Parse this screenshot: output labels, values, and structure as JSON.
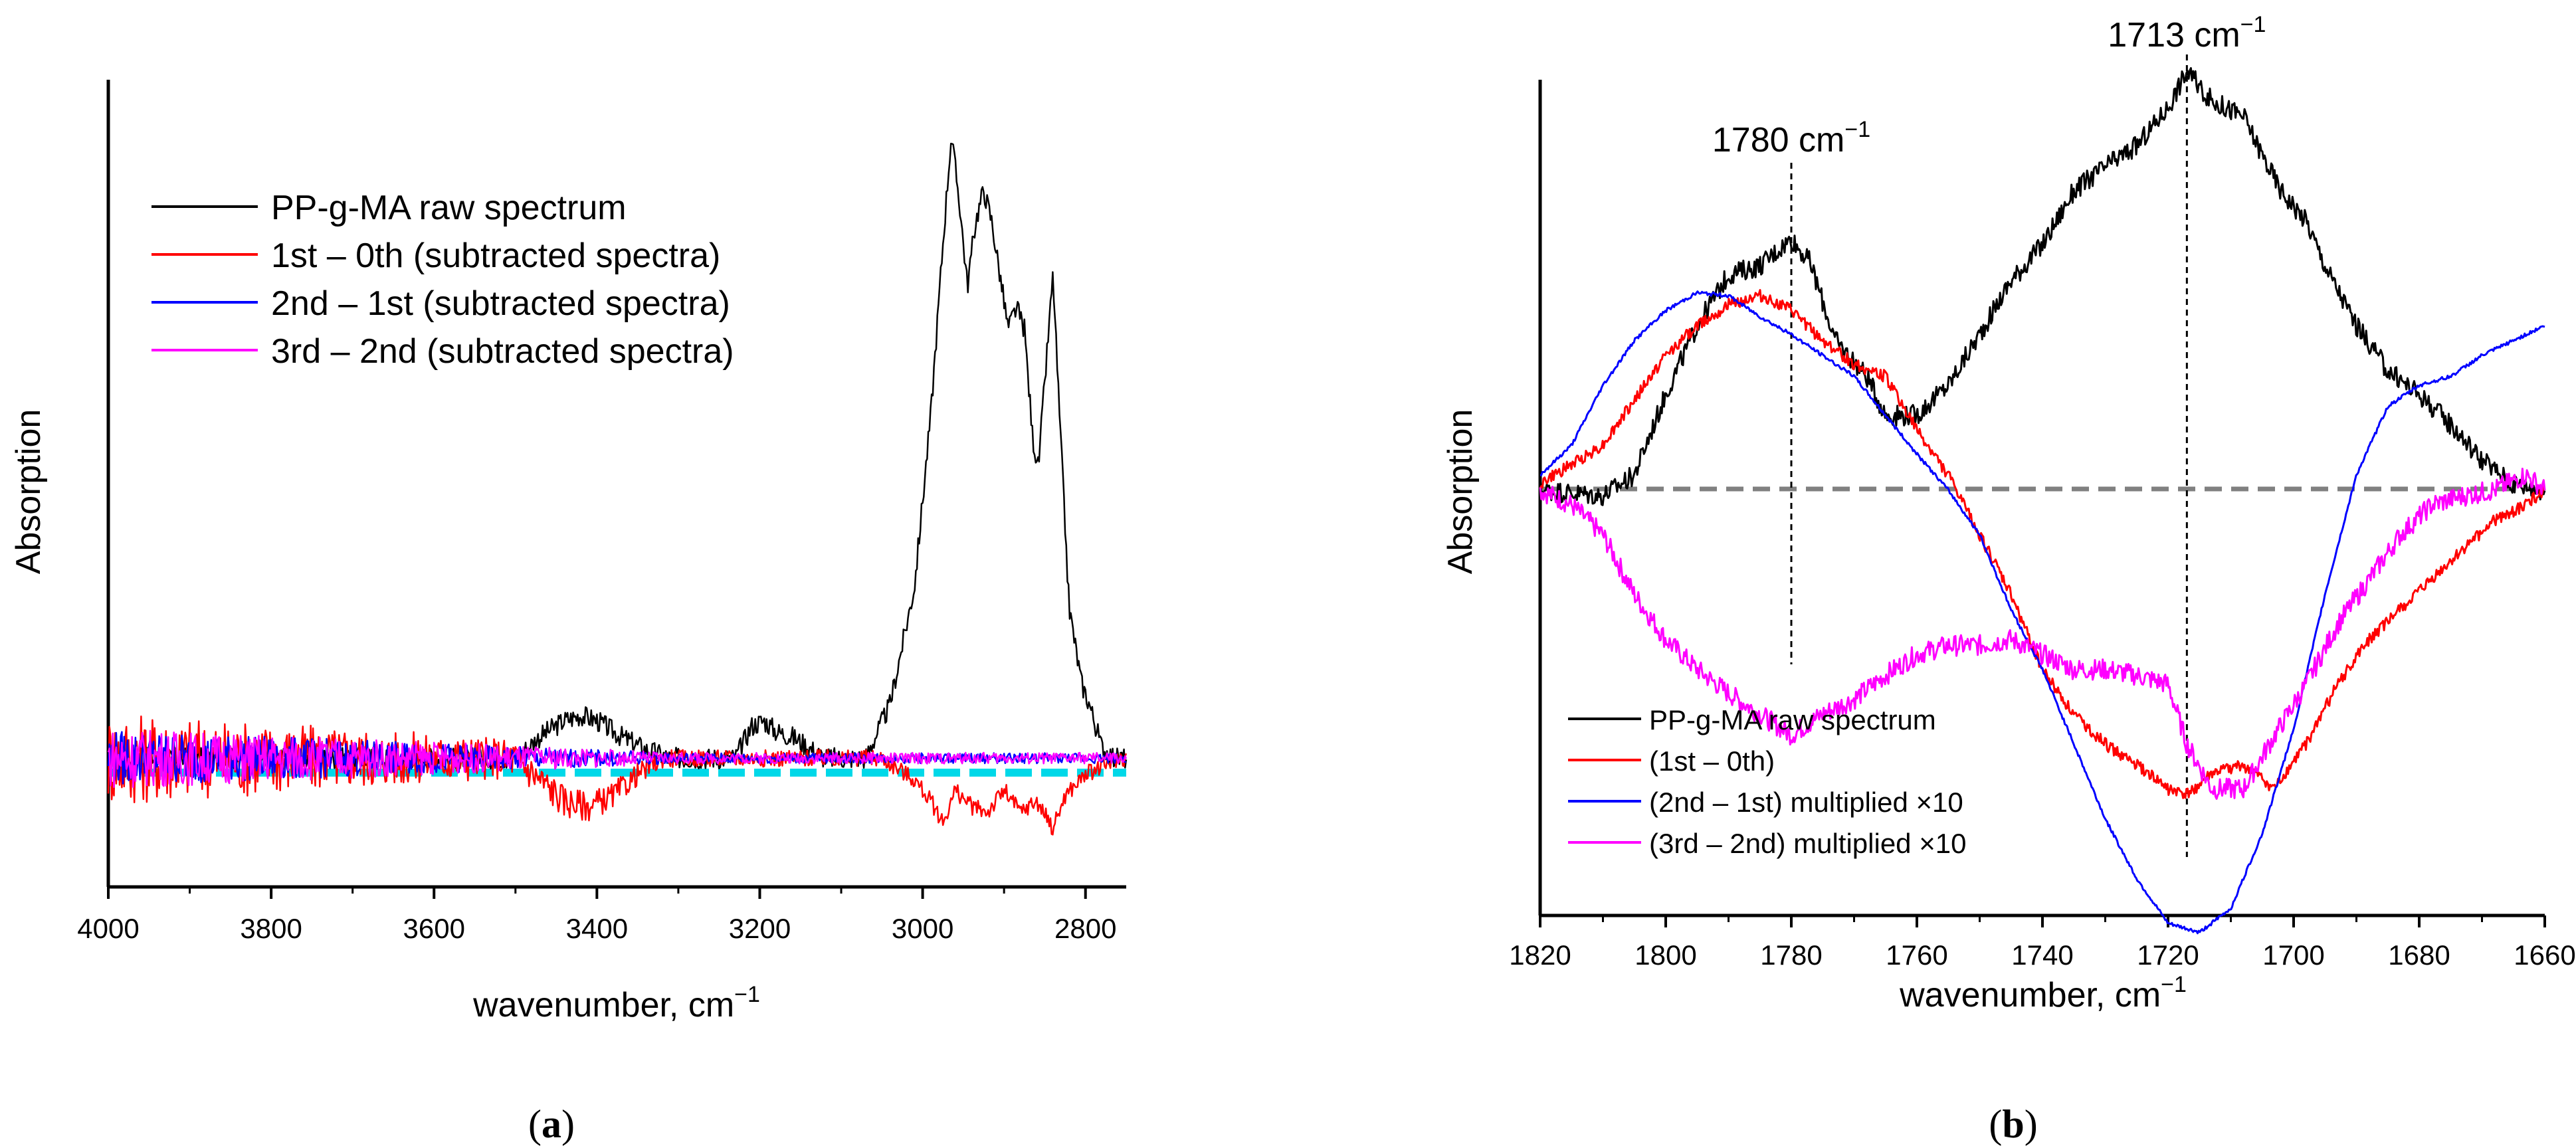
{
  "chart_data": [
    {
      "id": "a",
      "type": "line",
      "panel_label": "a",
      "xlabel": "wavenumber, cm",
      "xlabel_sup": "−1",
      "ylabel": "Absorption",
      "xlim": [
        4000,
        2750
      ],
      "ylim": [
        -0.12,
        0.62
      ],
      "xticks": [
        4000,
        3800,
        3600,
        3400,
        3200,
        3000,
        2800
      ],
      "baseline": 0,
      "legend": [
        {
          "label": "PP-g-MA raw spectrum",
          "color": "#000000"
        },
        {
          "label": "1st – 0th (subtracted spectra)",
          "color": "#ff0000"
        },
        {
          "label": "2nd – 1st (subtracted spectra)",
          "color": "#0000ff"
        },
        {
          "label": "3rd – 2nd (subtracted spectra)",
          "color": "#ff00ff"
        }
      ],
      "series": [
        {
          "name": "PP-g-MA raw spectrum",
          "color": "#000000",
          "points": [
            [
              4000,
              0
            ],
            [
              3500,
              0
            ],
            [
              3470,
              0.02
            ],
            [
              3440,
              0.035
            ],
            [
              3420,
              0.04
            ],
            [
              3400,
              0.035
            ],
            [
              3370,
              0.02
            ],
            [
              3340,
              0.008
            ],
            [
              3310,
              0
            ],
            [
              3230,
              0
            ],
            [
              3210,
              0.03
            ],
            [
              3195,
              0.035
            ],
            [
              3180,
              0.025
            ],
            [
              3160,
              0.02
            ],
            [
              3140,
              0.01
            ],
            [
              3120,
              0
            ],
            [
              3070,
              0
            ],
            [
              3040,
              0.05
            ],
            [
              3010,
              0.16
            ],
            [
              2990,
              0.32
            ],
            [
              2975,
              0.48
            ],
            [
              2965,
              0.58
            ],
            [
              2955,
              0.52
            ],
            [
              2945,
              0.44
            ],
            [
              2935,
              0.5
            ],
            [
              2925,
              0.53
            ],
            [
              2915,
              0.5
            ],
            [
              2905,
              0.45
            ],
            [
              2895,
              0.4
            ],
            [
              2885,
              0.42
            ],
            [
              2875,
              0.4
            ],
            [
              2865,
              0.3
            ],
            [
              2858,
              0.27
            ],
            [
              2850,
              0.35
            ],
            [
              2840,
              0.45
            ],
            [
              2832,
              0.32
            ],
            [
              2820,
              0.14
            ],
            [
              2805,
              0.07
            ],
            [
              2795,
              0.05
            ],
            [
              2780,
              0.01
            ],
            [
              2765,
              0
            ],
            [
              2750,
              0
            ]
          ],
          "noise": 0.01
        },
        {
          "name": "1st – 0th (subtracted spectra)",
          "color": "#ff0000",
          "points": [
            [
              4000,
              0
            ],
            [
              3500,
              0
            ],
            [
              3470,
              -0.02
            ],
            [
              3440,
              -0.04
            ],
            [
              3410,
              -0.045
            ],
            [
              3380,
              -0.035
            ],
            [
              3350,
              -0.015
            ],
            [
              3320,
              0
            ],
            [
              3050,
              0
            ],
            [
              3010,
              -0.02
            ],
            [
              2990,
              -0.04
            ],
            [
              2975,
              -0.06
            ],
            [
              2960,
              -0.03
            ],
            [
              2940,
              -0.045
            ],
            [
              2920,
              -0.05
            ],
            [
              2900,
              -0.03
            ],
            [
              2880,
              -0.05
            ],
            [
              2860,
              -0.04
            ],
            [
              2840,
              -0.065
            ],
            [
              2825,
              -0.035
            ],
            [
              2800,
              -0.015
            ],
            [
              2780,
              -0.008
            ],
            [
              2760,
              0
            ],
            [
              2750,
              0
            ]
          ],
          "noise": 0.02
        },
        {
          "name": "2nd – 1st (subtracted spectra)",
          "color": "#0000ff",
          "points": [
            [
              4000,
              0
            ],
            [
              2750,
              0
            ]
          ],
          "noise": 0.012
        },
        {
          "name": "3rd – 2nd (subtracted spectra)",
          "color": "#ff00ff",
          "points": [
            [
              4000,
              0
            ],
            [
              2750,
              0
            ]
          ],
          "noise": 0.013
        }
      ]
    },
    {
      "id": "b",
      "type": "line",
      "panel_label": "b",
      "xlabel": "wavenumber, cm",
      "xlabel_sup": "−1",
      "ylabel": "Absorption",
      "xlim": [
        1820,
        1660
      ],
      "ylim": [
        -1.35,
        1.35
      ],
      "xticks": [
        1820,
        1800,
        1780,
        1760,
        1740,
        1720,
        1700,
        1680,
        1660
      ],
      "baseline": 0,
      "annotations": [
        {
          "x": 1780,
          "label": "1780 cm",
          "sup": "−1"
        },
        {
          "x": 1717,
          "label": "1713 cm",
          "sup": "−1"
        }
      ],
      "legend": [
        {
          "label": "PP-g-MA raw spectrum",
          "color": "#000000"
        },
        {
          "label": "(1st – 0th)",
          "color": "#ff0000"
        },
        {
          "label": "(2nd – 1st) multiplied ×10",
          "color": "#0000ff"
        },
        {
          "label": "(3rd – 2nd) multiplied ×10",
          "color": "#ff00ff"
        }
      ],
      "series": [
        {
          "name": "PP-g-MA raw spectrum",
          "color": "#000000",
          "points": [
            [
              1820,
              0
            ],
            [
              1810,
              -0.02
            ],
            [
              1805,
              0.05
            ],
            [
              1800,
              0.32
            ],
            [
              1795,
              0.55
            ],
            [
              1790,
              0.72
            ],
            [
              1785,
              0.75
            ],
            [
              1780,
              0.84
            ],
            [
              1777,
              0.76
            ],
            [
              1773,
              0.5
            ],
            [
              1768,
              0.38
            ],
            [
              1765,
              0.25
            ],
            [
              1760,
              0.25
            ],
            [
              1755,
              0.35
            ],
            [
              1750,
              0.52
            ],
            [
              1745,
              0.7
            ],
            [
              1740,
              0.82
            ],
            [
              1735,
              1.0
            ],
            [
              1730,
              1.08
            ],
            [
              1725,
              1.15
            ],
            [
              1720,
              1.28
            ],
            [
              1717,
              1.4
            ],
            [
              1713,
              1.3
            ],
            [
              1708,
              1.25
            ],
            [
              1705,
              1.12
            ],
            [
              1702,
              1.0
            ],
            [
              1698,
              0.9
            ],
            [
              1695,
              0.75
            ],
            [
              1690,
              0.55
            ],
            [
              1685,
              0.4
            ],
            [
              1680,
              0.32
            ],
            [
              1675,
              0.22
            ],
            [
              1670,
              0.1
            ],
            [
              1665,
              0.02
            ],
            [
              1660,
              0
            ]
          ],
          "noise": 0.035
        },
        {
          "name": "(1st – 0th)",
          "color": "#ff0000",
          "points": [
            [
              1820,
              0.02
            ],
            [
              1810,
              0.15
            ],
            [
              1800,
              0.45
            ],
            [
              1795,
              0.55
            ],
            [
              1790,
              0.62
            ],
            [
              1785,
              0.65
            ],
            [
              1780,
              0.6
            ],
            [
              1775,
              0.5
            ],
            [
              1770,
              0.42
            ],
            [
              1765,
              0.38
            ],
            [
              1760,
              0.2
            ],
            [
              1755,
              0.05
            ],
            [
              1750,
              -0.15
            ],
            [
              1745,
              -0.35
            ],
            [
              1740,
              -0.6
            ],
            [
              1735,
              -0.75
            ],
            [
              1730,
              -0.85
            ],
            [
              1725,
              -0.92
            ],
            [
              1720,
              -1.0
            ],
            [
              1717,
              -1.02
            ],
            [
              1713,
              -0.95
            ],
            [
              1708,
              -0.92
            ],
            [
              1703,
              -1.0
            ],
            [
              1698,
              -0.85
            ],
            [
              1693,
              -0.65
            ],
            [
              1688,
              -0.5
            ],
            [
              1683,
              -0.4
            ],
            [
              1678,
              -0.3
            ],
            [
              1673,
              -0.2
            ],
            [
              1668,
              -0.1
            ],
            [
              1663,
              -0.05
            ],
            [
              1660,
              0
            ]
          ],
          "noise": 0.02
        },
        {
          "name": "(2nd – 1st) multiplied ×10",
          "color": "#0000ff",
          "points": [
            [
              1820,
              0.05
            ],
            [
              1815,
              0.15
            ],
            [
              1810,
              0.35
            ],
            [
              1805,
              0.5
            ],
            [
              1800,
              0.6
            ],
            [
              1795,
              0.66
            ],
            [
              1790,
              0.65
            ],
            [
              1785,
              0.58
            ],
            [
              1780,
              0.52
            ],
            [
              1775,
              0.45
            ],
            [
              1770,
              0.38
            ],
            [
              1765,
              0.25
            ],
            [
              1760,
              0.12
            ],
            [
              1755,
              0
            ],
            [
              1750,
              -0.15
            ],
            [
              1745,
              -0.4
            ],
            [
              1740,
              -0.6
            ],
            [
              1735,
              -0.85
            ],
            [
              1730,
              -1.1
            ],
            [
              1725,
              -1.3
            ],
            [
              1720,
              -1.45
            ],
            [
              1715,
              -1.48
            ],
            [
              1710,
              -1.4
            ],
            [
              1705,
              -1.15
            ],
            [
              1700,
              -0.8
            ],
            [
              1695,
              -0.35
            ],
            [
              1690,
              0.05
            ],
            [
              1685,
              0.28
            ],
            [
              1680,
              0.35
            ],
            [
              1675,
              0.38
            ],
            [
              1670,
              0.45
            ],
            [
              1665,
              0.5
            ],
            [
              1660,
              0.55
            ]
          ],
          "noise": 0.006
        },
        {
          "name": "(3rd – 2nd) multiplied ×10",
          "color": "#ff00ff",
          "points": [
            [
              1820,
              0
            ],
            [
              1815,
              -0.05
            ],
            [
              1810,
              -0.15
            ],
            [
              1805,
              -0.35
            ],
            [
              1800,
              -0.5
            ],
            [
              1795,
              -0.6
            ],
            [
              1790,
              -0.68
            ],
            [
              1785,
              -0.75
            ],
            [
              1780,
              -0.82
            ],
            [
              1775,
              -0.75
            ],
            [
              1770,
              -0.7
            ],
            [
              1765,
              -0.62
            ],
            [
              1760,
              -0.55
            ],
            [
              1755,
              -0.52
            ],
            [
              1750,
              -0.52
            ],
            [
              1745,
              -0.5
            ],
            [
              1740,
              -0.55
            ],
            [
              1735,
              -0.6
            ],
            [
              1730,
              -0.6
            ],
            [
              1725,
              -0.62
            ],
            [
              1720,
              -0.65
            ],
            [
              1717,
              -0.85
            ],
            [
              1713,
              -1.0
            ],
            [
              1708,
              -1.0
            ],
            [
              1703,
              -0.82
            ],
            [
              1698,
              -0.65
            ],
            [
              1693,
              -0.45
            ],
            [
              1688,
              -0.3
            ],
            [
              1683,
              -0.15
            ],
            [
              1678,
              -0.05
            ],
            [
              1673,
              -0.02
            ],
            [
              1668,
              0
            ],
            [
              1663,
              0.05
            ],
            [
              1660,
              0
            ]
          ],
          "noise": 0.035
        }
      ]
    }
  ]
}
